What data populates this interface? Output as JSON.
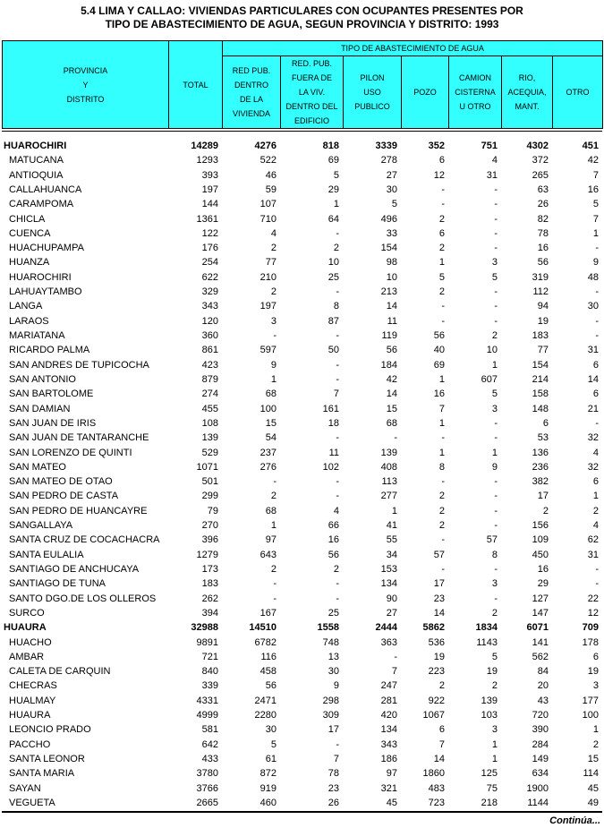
{
  "title": [
    "5.4  LIMA Y CALLAO: VIVIENDAS PARTICULARES CON OCUPANTES PRESENTES POR",
    "TIPO DE ABASTECIMIENTO DE AGUA, SEGUN PROVINCIA Y DISTRITO: 1993"
  ],
  "header": {
    "name": [
      "PROVINCIA",
      "Y",
      "DISTRITO"
    ],
    "total": [
      "TOTAL"
    ],
    "group": "TIPO DE ABASTECIMIENTO DE AGUA",
    "columns": [
      [
        "RED PUB.",
        "DENTRO",
        "DE LA",
        "VIVIENDA"
      ],
      [
        "RED. PUB.",
        "FUERA DE",
        "LA VIV.",
        "DENTRO DEL",
        "EDIFICIO"
      ],
      [
        "PILON",
        "USO",
        "PUBLICO"
      ],
      [
        "POZO"
      ],
      [
        "CAMION",
        "CISTERNA",
        "U OTRO"
      ],
      [
        "RIO,",
        "ACEQUIA,",
        "MANT."
      ],
      [
        "OTRO"
      ]
    ]
  },
  "provinces": [
    {
      "name": "HUAROCHIRI",
      "values": [
        14289,
        4276,
        818,
        3339,
        352,
        751,
        4302,
        451
      ],
      "districts": [
        {
          "name": "MATUCANA",
          "values": [
            1293,
            522,
            69,
            278,
            6,
            4,
            372,
            42
          ]
        },
        {
          "name": "ANTIOQUIA",
          "values": [
            393,
            46,
            5,
            27,
            12,
            31,
            265,
            7
          ]
        },
        {
          "name": "CALLAHUANCA",
          "values": [
            197,
            59,
            29,
            30,
            "-",
            "-",
            63,
            16
          ]
        },
        {
          "name": "CARAMPOMA",
          "values": [
            144,
            107,
            1,
            5,
            "-",
            "-",
            26,
            5
          ]
        },
        {
          "name": "CHICLA",
          "values": [
            1361,
            710,
            64,
            496,
            2,
            "-",
            82,
            7
          ]
        },
        {
          "name": "CUENCA",
          "values": [
            122,
            4,
            "-",
            33,
            6,
            "-",
            78,
            1
          ]
        },
        {
          "name": "HUACHUPAMPA",
          "values": [
            176,
            2,
            2,
            154,
            2,
            "-",
            16,
            "-"
          ]
        },
        {
          "name": "HUANZA",
          "values": [
            254,
            77,
            10,
            98,
            1,
            3,
            56,
            9
          ]
        },
        {
          "name": "HUAROCHIRI",
          "values": [
            622,
            210,
            25,
            10,
            5,
            5,
            319,
            48
          ]
        },
        {
          "name": "LAHUAYTAMBO",
          "values": [
            329,
            2,
            "-",
            213,
            2,
            "-",
            112,
            "-"
          ]
        },
        {
          "name": "LANGA",
          "values": [
            343,
            197,
            8,
            14,
            "-",
            "-",
            94,
            30
          ]
        },
        {
          "name": "LARAOS",
          "values": [
            120,
            3,
            87,
            11,
            "-",
            "-",
            19,
            "-"
          ]
        },
        {
          "name": "MARIATANA",
          "values": [
            360,
            "-",
            "-",
            119,
            56,
            2,
            183,
            "-"
          ]
        },
        {
          "name": "RICARDO PALMA",
          "values": [
            861,
            597,
            50,
            56,
            40,
            10,
            77,
            31
          ]
        },
        {
          "name": "SAN ANDRES DE TUPICOCHA",
          "values": [
            423,
            9,
            "-",
            184,
            69,
            1,
            154,
            6
          ]
        },
        {
          "name": "SAN ANTONIO",
          "values": [
            879,
            1,
            "-",
            42,
            1,
            607,
            214,
            14
          ]
        },
        {
          "name": "SAN BARTOLOME",
          "values": [
            274,
            68,
            7,
            14,
            16,
            5,
            158,
            6
          ]
        },
        {
          "name": "SAN DAMIAN",
          "values": [
            455,
            100,
            161,
            15,
            7,
            3,
            148,
            21
          ]
        },
        {
          "name": "SAN JUAN DE IRIS",
          "values": [
            108,
            15,
            18,
            68,
            1,
            "-",
            6,
            "-"
          ]
        },
        {
          "name": "SAN JUAN DE TANTARANCHE",
          "values": [
            139,
            54,
            "-",
            "-",
            "-",
            "-",
            53,
            32
          ]
        },
        {
          "name": "SAN LORENZO DE QUINTI",
          "values": [
            529,
            237,
            11,
            139,
            1,
            1,
            136,
            4
          ]
        },
        {
          "name": "SAN MATEO",
          "values": [
            1071,
            276,
            102,
            408,
            8,
            9,
            236,
            32
          ]
        },
        {
          "name": "SAN MATEO DE OTAO",
          "values": [
            501,
            "-",
            "-",
            113,
            "-",
            "-",
            382,
            6
          ]
        },
        {
          "name": "SAN PEDRO DE CASTA",
          "values": [
            299,
            2,
            "-",
            277,
            2,
            "-",
            17,
            1
          ]
        },
        {
          "name": "SAN PEDRO DE HUANCAYRE",
          "values": [
            79,
            68,
            4,
            1,
            2,
            "-",
            2,
            2
          ]
        },
        {
          "name": "SANGALLAYA",
          "values": [
            270,
            1,
            66,
            41,
            2,
            "-",
            156,
            4
          ]
        },
        {
          "name": "SANTA CRUZ DE COCACHACRA",
          "values": [
            396,
            97,
            16,
            55,
            "-",
            57,
            109,
            62
          ]
        },
        {
          "name": "SANTA EULALIA",
          "values": [
            1279,
            643,
            56,
            34,
            57,
            8,
            450,
            31
          ]
        },
        {
          "name": "SANTIAGO DE ANCHUCAYA",
          "values": [
            173,
            2,
            2,
            153,
            "-",
            "-",
            16,
            "-"
          ]
        },
        {
          "name": "SANTIAGO DE TUNA",
          "values": [
            183,
            "-",
            "-",
            134,
            17,
            3,
            29,
            "-"
          ]
        },
        {
          "name": "SANTO DGO.DE LOS OLLEROS",
          "values": [
            262,
            "-",
            "-",
            90,
            23,
            "-",
            127,
            22
          ]
        },
        {
          "name": "SURCO",
          "values": [
            394,
            167,
            25,
            27,
            14,
            2,
            147,
            12
          ]
        }
      ]
    },
    {
      "name": "HUAURA",
      "values": [
        32988,
        14510,
        1558,
        2444,
        5862,
        1834,
        6071,
        709
      ],
      "districts": [
        {
          "name": "HUACHO",
          "values": [
            9891,
            6782,
            748,
            363,
            536,
            1143,
            141,
            178
          ]
        },
        {
          "name": "AMBAR",
          "values": [
            721,
            116,
            13,
            "-",
            19,
            5,
            562,
            6
          ]
        },
        {
          "name": "CALETA DE CARQUIN",
          "values": [
            840,
            458,
            30,
            7,
            223,
            19,
            84,
            19
          ]
        },
        {
          "name": "CHECRAS",
          "values": [
            339,
            56,
            9,
            247,
            2,
            2,
            20,
            3
          ]
        },
        {
          "name": "HUALMAY",
          "values": [
            4331,
            2471,
            298,
            281,
            922,
            139,
            43,
            177
          ]
        },
        {
          "name": "HUAURA",
          "values": [
            4999,
            2280,
            309,
            420,
            1067,
            103,
            720,
            100
          ]
        },
        {
          "name": "LEONCIO PRADO",
          "values": [
            581,
            30,
            17,
            134,
            6,
            3,
            390,
            1
          ]
        },
        {
          "name": "PACCHO",
          "values": [
            642,
            5,
            "-",
            343,
            7,
            1,
            284,
            2
          ]
        },
        {
          "name": "SANTA LEONOR",
          "values": [
            433,
            61,
            7,
            186,
            14,
            1,
            149,
            15
          ]
        },
        {
          "name": "SANTA MARIA",
          "values": [
            3780,
            872,
            78,
            97,
            1860,
            125,
            634,
            114
          ]
        },
        {
          "name": "SAYAN",
          "values": [
            3766,
            919,
            23,
            321,
            483,
            75,
            1900,
            45
          ]
        },
        {
          "name": "VEGUETA",
          "values": [
            2665,
            460,
            26,
            45,
            723,
            218,
            1144,
            49
          ]
        }
      ]
    }
  ],
  "footer": "Continúa..."
}
